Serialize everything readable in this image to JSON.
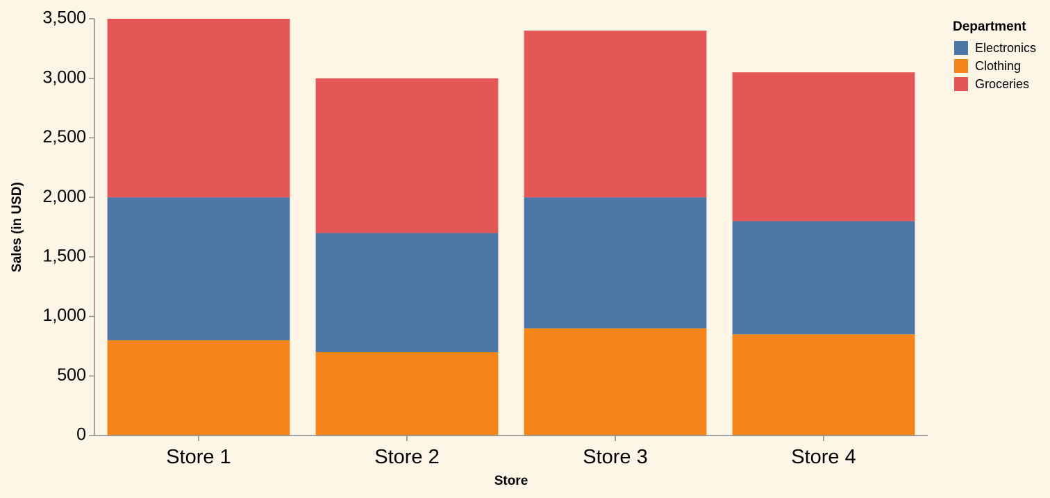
{
  "chart_data": {
    "type": "bar",
    "stacked": true,
    "categories": [
      "Store 1",
      "Store 2",
      "Store 3",
      "Store 4"
    ],
    "series": [
      {
        "name": "Clothing",
        "values": [
          800,
          700,
          900,
          850
        ],
        "color": "#f58518"
      },
      {
        "name": "Electronics",
        "values": [
          1200,
          1000,
          1100,
          950
        ],
        "color": "#4c78a8"
      },
      {
        "name": "Groceries",
        "values": [
          1500,
          1300,
          1400,
          1250
        ],
        "color": "#e45756"
      }
    ],
    "title": "",
    "xlabel": "Store",
    "ylabel": "Sales (in USD)",
    "ylim": [
      0,
      3500
    ],
    "yticks": [
      0,
      500,
      1000,
      1500,
      2000,
      2500,
      3000,
      3500
    ],
    "ytick_labels": [
      "0",
      "500",
      "1,000",
      "1,500",
      "2,000",
      "2,500",
      "3,000",
      "3,500"
    ],
    "grid": false,
    "legend": {
      "title": "Department",
      "position": "top-right",
      "entries": [
        {
          "label": "Electronics",
          "color": "#4c78a8"
        },
        {
          "label": "Clothing",
          "color": "#f58518"
        },
        {
          "label": "Groceries",
          "color": "#e45756"
        }
      ]
    },
    "background": "#fdf5e6",
    "axis_color": "#888888"
  }
}
